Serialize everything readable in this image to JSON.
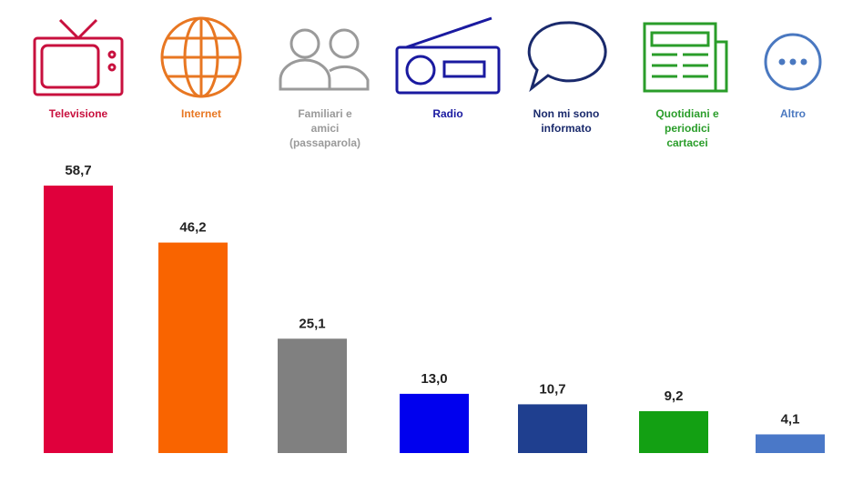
{
  "chart_data": {
    "type": "bar",
    "categories": [
      "Televisione",
      "Internet",
      "Familiari e amici (passaparola)",
      "Radio",
      "Non mi sono informato",
      "Quotidiani e periodici cartacei",
      "Altro"
    ],
    "values": [
      58.7,
      46.2,
      25.1,
      13.0,
      10.7,
      9.2,
      4.1
    ],
    "value_labels": [
      "58,7",
      "46,2",
      "25,1",
      "13,0",
      "10,7",
      "9,2",
      "4,1"
    ],
    "colors": [
      "#e0003c",
      "#f96400",
      "#808080",
      "#0000ee",
      "#1f3f8f",
      "#13a013",
      "#4a78c8"
    ],
    "label_colors": [
      "#c8103e",
      "#e87722",
      "#9a9a9a",
      "#1a1aa0",
      "#1a2a6c",
      "#2a9d2a",
      "#4a78c0"
    ]
  }
}
